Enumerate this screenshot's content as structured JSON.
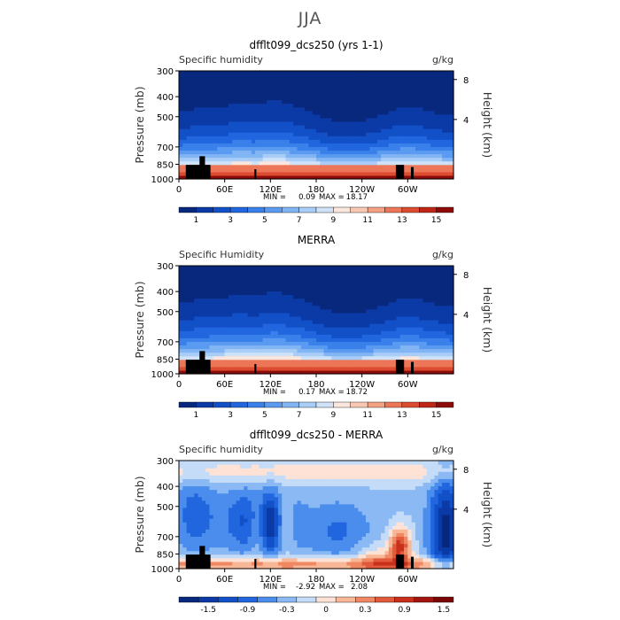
{
  "figure_title": "JJA",
  "colors": {
    "blue_red_16": [
      "#08287d",
      "#0b3aa6",
      "#1250c8",
      "#2166de",
      "#3a80eb",
      "#5a9af0",
      "#82b5f4",
      "#a9cdf6",
      "#cfe2f8",
      "#fbe6dd",
      "#f8c8b3",
      "#f4a183",
      "#ec7657",
      "#dc4c30",
      "#bf2617",
      "#8f0b0b"
    ],
    "diff_14": [
      "#08287d",
      "#0b3aa6",
      "#1250c8",
      "#2166de",
      "#4a8ded",
      "#8ab9f4",
      "#c4dcf8",
      "#fde2d5",
      "#f8b898",
      "#f08863",
      "#e05a3b",
      "#c9301c",
      "#a31510",
      "#7a0606"
    ]
  },
  "chart_data": [
    {
      "type": "heatmap",
      "title": "dfflt099_dcs250 (yrs 1-1)",
      "left_label": "Specific humidity",
      "right_label": "g/kg",
      "ylabel": "Pressure (mb)",
      "ylabel_right": "Height (km)",
      "yticks": [
        300,
        400,
        500,
        700,
        850,
        1000
      ],
      "ylim": [
        1000,
        300
      ],
      "y_log": true,
      "xticks": [
        "0",
        "60E",
        "120E",
        "180",
        "120W",
        "60W"
      ],
      "xlim": [
        0,
        360
      ],
      "height_ticks": [
        8,
        4
      ],
      "min_label": "MIN =",
      "min_value": "0.09",
      "max_label": "MAX =",
      "max_value": "18.17",
      "colorbar_labels": [
        "1",
        "3",
        "5",
        "7",
        "9",
        "11",
        "13",
        "15"
      ],
      "field": "humidity_obs"
    },
    {
      "type": "heatmap",
      "title": "MERRA",
      "left_label": "Specific Humidity",
      "right_label": "g/kg",
      "ylabel": "Pressure (mb)",
      "ylabel_right": "Height (km)",
      "yticks": [
        300,
        400,
        500,
        700,
        850,
        1000
      ],
      "ylim": [
        1000,
        300
      ],
      "y_log": true,
      "xticks": [
        "0",
        "60E",
        "120E",
        "180",
        "120W",
        "60W"
      ],
      "xlim": [
        0,
        360
      ],
      "height_ticks": [
        8,
        4
      ],
      "min_label": "MIN =",
      "min_value": "0.17",
      "max_label": "MAX =",
      "max_value": "18.72",
      "colorbar_labels": [
        "1",
        "3",
        "5",
        "7",
        "9",
        "11",
        "13",
        "15"
      ],
      "field": "humidity_merra"
    },
    {
      "type": "heatmap",
      "title": "dfflt099_dcs250 - MERRA",
      "left_label": "Specific humidity",
      "right_label": "g/kg",
      "ylabel": "Pressure (mb)",
      "ylabel_right": "Height (km)",
      "yticks": [
        300,
        400,
        500,
        700,
        850,
        1000
      ],
      "ylim": [
        1000,
        300
      ],
      "y_log": true,
      "xticks": [
        "0",
        "60E",
        "120E",
        "180",
        "120W",
        "60W"
      ],
      "xlim": [
        0,
        360
      ],
      "height_ticks": [
        8,
        4
      ],
      "min_label": "MIN =",
      "min_value": "-2.92",
      "max_label": "MAX =",
      "max_value": "2.08",
      "colorbar_labels": [
        "-1.5",
        "-0.9",
        "-0.3",
        "0",
        "0.3",
        "0.9",
        "1.5"
      ],
      "field": "difference"
    }
  ]
}
